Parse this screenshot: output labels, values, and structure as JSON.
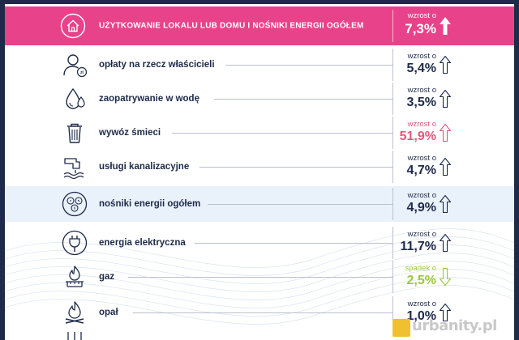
{
  "chart_data": {
    "type": "table",
    "title": "",
    "header": {
      "label": "UŻYTKOWANIE LOKALU LUB DOMU I NOŚNIKI ENERGII OGÓŁEM",
      "trend": "wzrost o",
      "value": "7,3%",
      "direction": "up"
    },
    "rows": [
      {
        "label": "opłaty na rzecz właścicieli",
        "trend": "wzrost o",
        "value": "5,4%",
        "direction": "up",
        "icon": "person-zl-icon"
      },
      {
        "label": "zaopatrywanie w wodę",
        "trend": "wzrost o",
        "value": "3,5%",
        "direction": "up",
        "icon": "water-drop-icon"
      },
      {
        "label": "wywóz śmieci",
        "trend": "wzrost o",
        "value": "51,9%",
        "direction": "up",
        "icon": "trash-bin-icon",
        "highlight_color": "#e05a7a"
      },
      {
        "label": "usługi kanalizacyjne",
        "trend": "wzrost o",
        "value": "4,7%",
        "direction": "up",
        "icon": "sewer-pipe-icon"
      },
      {
        "label": "nośniki energii ogółem",
        "trend": "wzrost o",
        "value": "4,9%",
        "direction": "up",
        "icon": "energy-sources-icon",
        "shaded": true
      },
      {
        "label": "energia elektryczna",
        "trend": "wzrost o",
        "value": "11,7%",
        "direction": "up",
        "icon": "plug-icon"
      },
      {
        "label": "gaz",
        "trend": "spadek o",
        "value": "2,5%",
        "direction": "down",
        "icon": "gas-flame-icon",
        "highlight_color": "#9bc93a"
      },
      {
        "label": "opał",
        "trend": "wzrost o",
        "value": "1,0%",
        "direction": "up",
        "icon": "fire-icon"
      }
    ]
  },
  "colors": {
    "navy": "#1d2a4a",
    "header_pink": "#e8428a",
    "increase_red": "#e05a7a",
    "decrease_green": "#9bc93a",
    "shaded_row": "#e9f2fa"
  },
  "watermark": {
    "text": "urbanity.pl"
  }
}
